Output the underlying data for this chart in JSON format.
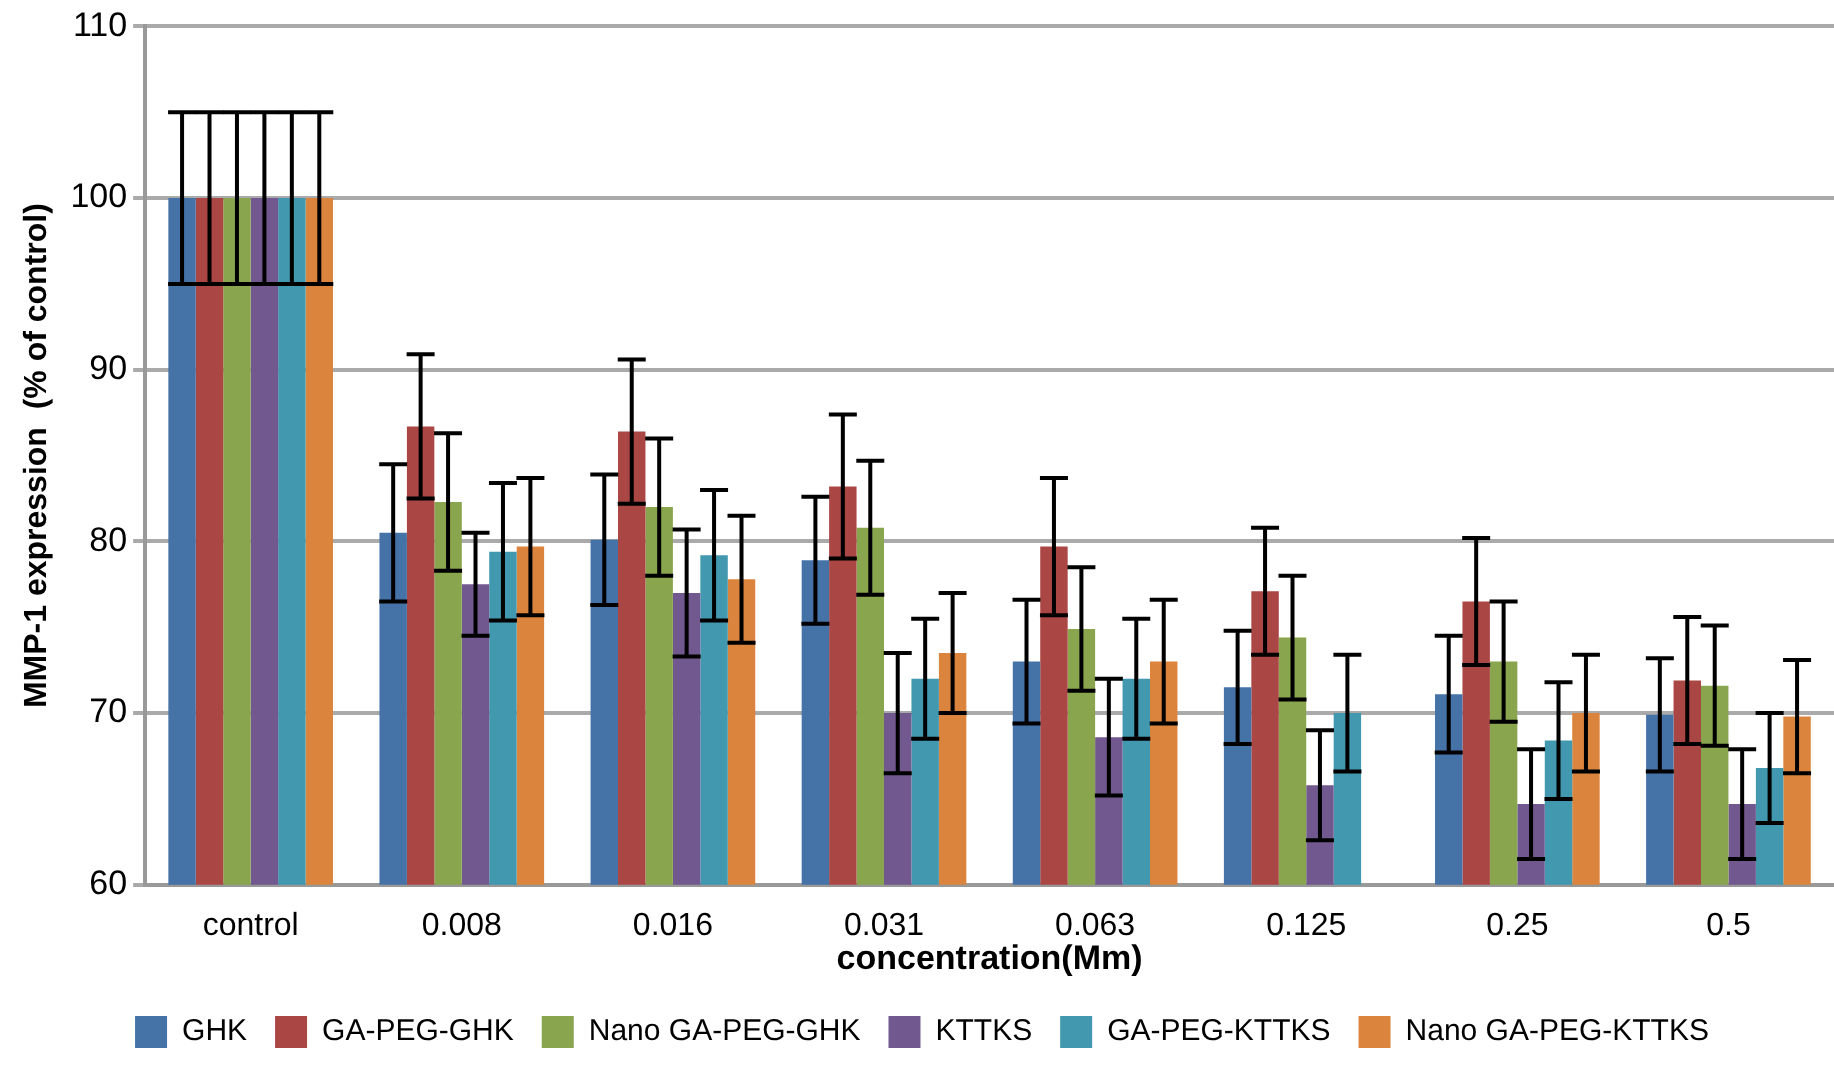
{
  "chart_data": {
    "type": "bar",
    "xlabel": "concentration(Mm)",
    "ylabel": "MMP-1 expression  (% of control)",
    "categories": [
      "control",
      "0.008",
      "0.016",
      "0.031",
      "0.063",
      "0.125",
      "0.25",
      "0.5"
    ],
    "ylim": [
      60,
      110
    ],
    "yticks": [
      60,
      70,
      80,
      90,
      100,
      110
    ],
    "grid": "y",
    "legend": "bottom",
    "series": [
      {
        "name": "GHK",
        "color": "#4572a7",
        "values": [
          100,
          80.5,
          80.1,
          78.9,
          73,
          71.5,
          71.1,
          69.9
        ],
        "errors": [
          5,
          4,
          3.8,
          3.7,
          3.6,
          3.3,
          3.4,
          3.3
        ]
      },
      {
        "name": "GA-PEG-GHK",
        "color": "#aa4643",
        "values": [
          100,
          86.7,
          86.4,
          83.2,
          79.7,
          77.1,
          76.5,
          71.9
        ],
        "errors": [
          5,
          4.2,
          4.2,
          4.2,
          4,
          3.7,
          3.7,
          3.7
        ]
      },
      {
        "name": "Nano GA-PEG-GHK",
        "color": "#89a54e",
        "values": [
          100,
          82.3,
          82,
          80.8,
          74.9,
          74.4,
          73,
          71.6
        ],
        "errors": [
          5,
          4,
          4,
          3.9,
          3.6,
          3.6,
          3.5,
          3.5
        ]
      },
      {
        "name": "KTTKS",
        "color": "#71588f",
        "values": [
          100,
          77.5,
          77,
          70,
          68.6,
          65.8,
          64.7,
          64.7
        ],
        "errors": [
          5,
          3,
          3.7,
          3.5,
          3.4,
          3.2,
          3.2,
          3.2
        ]
      },
      {
        "name": "GA-PEG-KTTKS",
        "color": "#4198af",
        "values": [
          100,
          79.4,
          79.2,
          72,
          72,
          70,
          68.4,
          66.8
        ],
        "errors": [
          5,
          4,
          3.8,
          3.5,
          3.5,
          3.4,
          3.4,
          3.2
        ]
      },
      {
        "name": "Nano GA-PEG-KTTKS",
        "color": "#db843d",
        "values": [
          100,
          79.7,
          77.8,
          73.5,
          73,
          null,
          70,
          69.8
        ],
        "errors": [
          5,
          4,
          3.7,
          3.5,
          3.6,
          null,
          3.4,
          3.3
        ]
      }
    ]
  }
}
